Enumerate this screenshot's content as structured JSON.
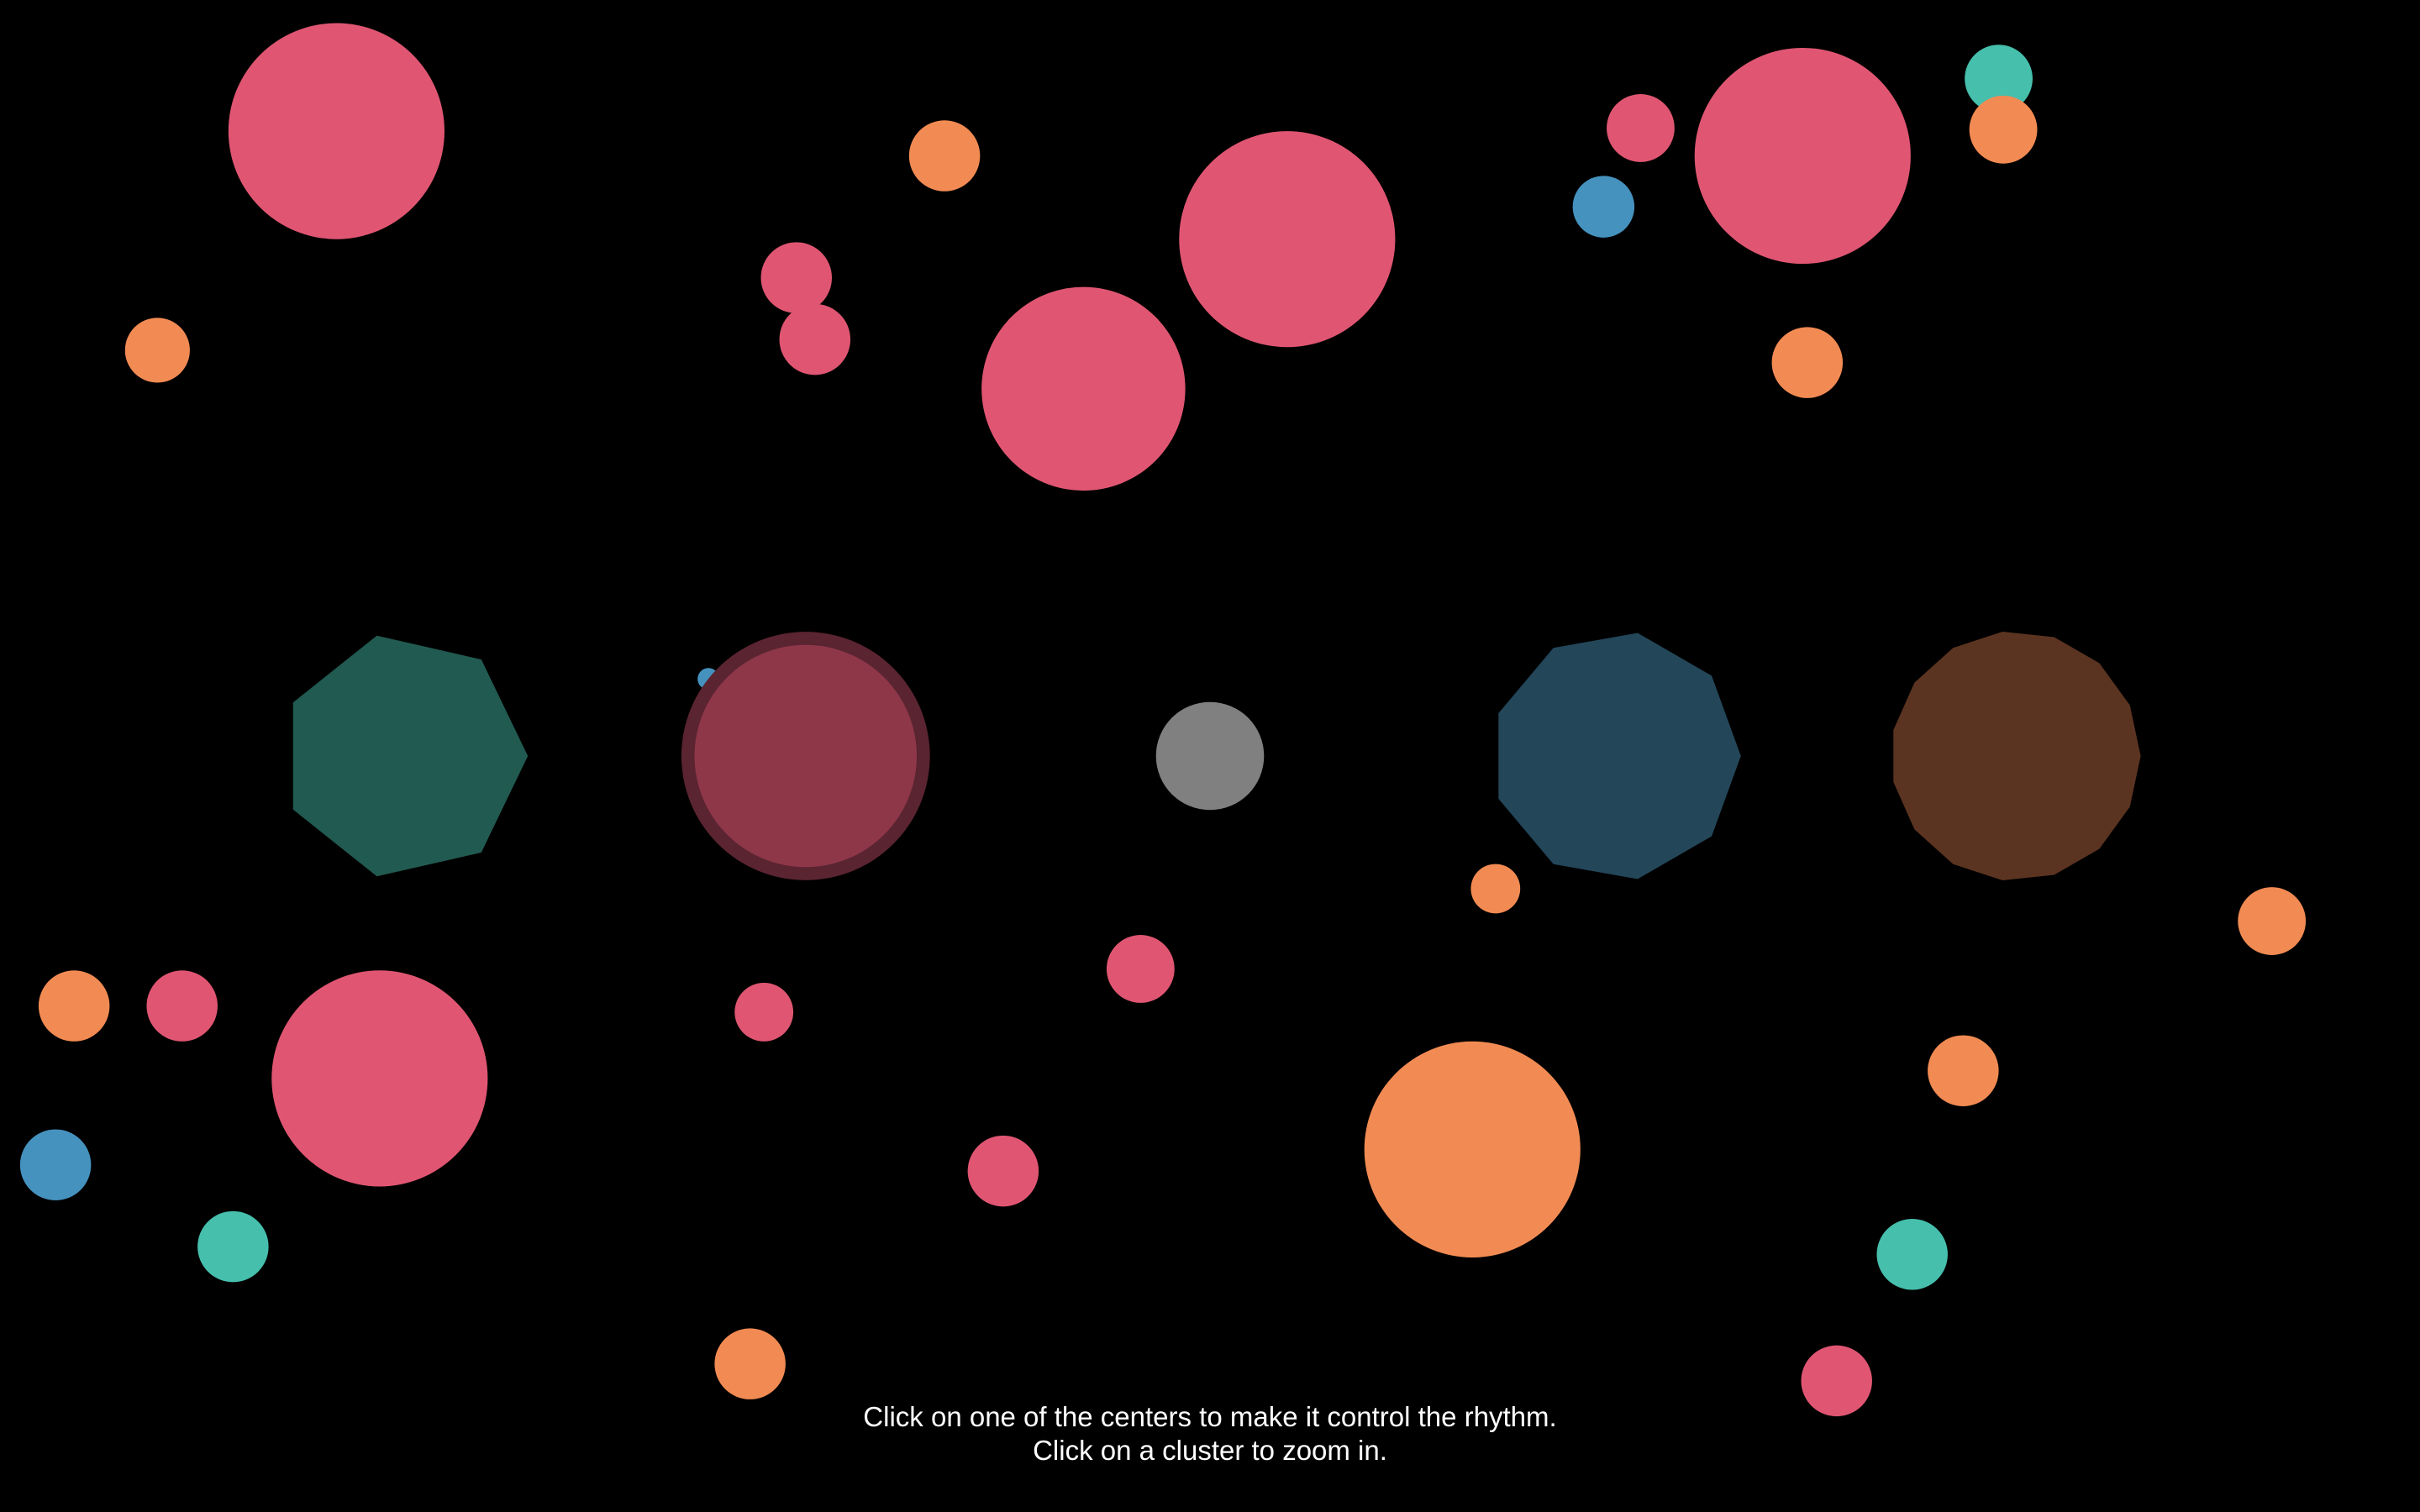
{
  "colors": {
    "background": "#000000",
    "pink": "#e05672",
    "orange": "#f28b53",
    "teal": "#46bfad",
    "blue": "#4592bf",
    "gray": "#808080"
  },
  "center_shapes": [
    {
      "name": "center-heptagon-teal",
      "shape": "heptagon",
      "color": "#215a50"
    },
    {
      "name": "center-circle-pink",
      "shape": "circle",
      "color": "#8e3749",
      "ring_color": "#5a2431",
      "selected": true
    },
    {
      "name": "center-circle-gray",
      "shape": "circle",
      "color": "#808080"
    },
    {
      "name": "center-nonagon-blue",
      "shape": "nonagon",
      "color": "#234659"
    },
    {
      "name": "center-polygon-brown",
      "shape": "15-gon",
      "color": "#5b3421"
    }
  ],
  "hints": {
    "line1": "Click on one of the centers to make it control the rhythm.",
    "line2": "Click on a cluster to zoom in."
  }
}
